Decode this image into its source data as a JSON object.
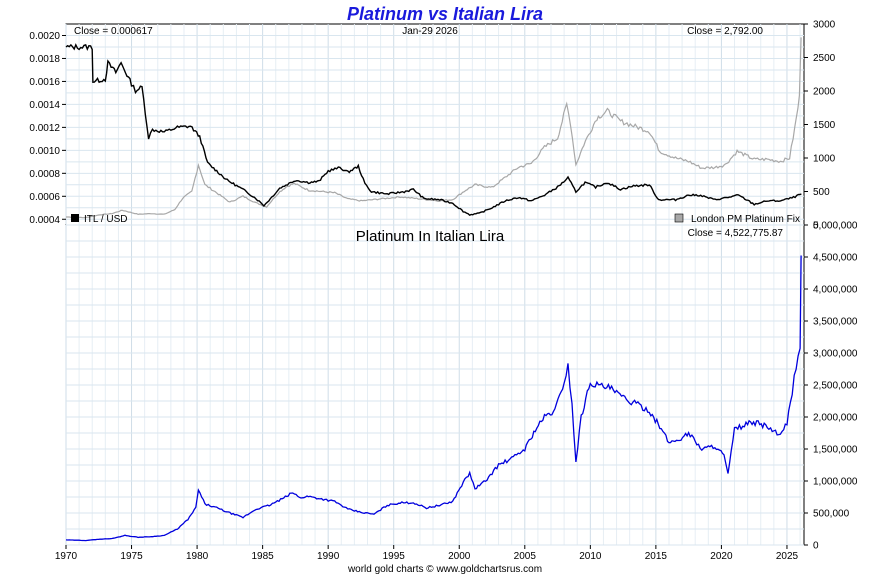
{
  "title": "Platinum vs Italian Lira",
  "footer": "world gold charts © www.goldchartsrus.com",
  "chart_data": [
    {
      "type": "line",
      "panel": "top",
      "date_label": "Jan-29  2026",
      "close_left": "Close = 0.000617",
      "close_right": "Close = 2,792.00",
      "xlim": [
        1970,
        2026.3
      ],
      "x_ticks": [
        "1970",
        "1975",
        "1980",
        "1985",
        "1990",
        "1995",
        "2000",
        "2005",
        "2010",
        "2015",
        "2020",
        "2025"
      ],
      "y_left_lim": [
        0.00035,
        0.0021
      ],
      "y_left_ticks": [
        "0.0004",
        "0.0006",
        "0.0008",
        "0.0010",
        "0.0012",
        "0.0014",
        "0.0016",
        "0.0018",
        "0.0020"
      ],
      "y_right_lim": [
        0,
        3000
      ],
      "y_right_ticks": [
        "0",
        "500",
        "1000",
        "1500",
        "2000",
        "2500",
        "3000"
      ],
      "grid": true,
      "legend_left": "ITL / USD",
      "legend_right": "London PM Platinum Fix",
      "series": [
        {
          "name": "ITL / USD",
          "axis": "left",
          "color": "#000000",
          "x": [
            1970,
            1972.0,
            1972.05,
            1973.0,
            1973.2,
            1973.8,
            1974.2,
            1975.0,
            1975.3,
            1975.8,
            1976.3,
            1976.6,
            1977.5,
            1978.5,
            1979.5,
            1980.2,
            1980.8,
            1981.5,
            1982.3,
            1983.5,
            1984.5,
            1985.1,
            1985.6,
            1986.3,
            1987.5,
            1988.5,
            1989.3,
            1990.0,
            1990.9,
            1991.5,
            1992.3,
            1992.8,
            1993.3,
            1994.5,
            1995.2,
            1995.8,
            1996.5,
            1997.3,
            1998.5,
            1999.5,
            2000.3,
            2000.8,
            2001.5,
            2002.5,
            2003.5,
            2004.5,
            2005.5,
            2006.5,
            2007.5,
            2008.3,
            2008.9,
            2009.6,
            2010.4,
            2011.3,
            2012.3,
            2013.3,
            2014.5,
            2015.2,
            2016.5,
            2017.5,
            2018.3,
            2019.5,
            2020.5,
            2021.3,
            2022.5,
            2023.5,
            2024.5,
            2025.5,
            2026.1
          ],
          "y": [
            0.0019,
            0.0019,
            0.0016,
            0.00162,
            0.00176,
            0.00168,
            0.00176,
            0.00158,
            0.00152,
            0.00155,
            0.00111,
            0.00118,
            0.00116,
            0.0012,
            0.00121,
            0.00112,
            0.00089,
            0.00082,
            0.00074,
            0.00066,
            0.00058,
            0.00052,
            0.00058,
            0.00067,
            0.00074,
            0.00072,
            0.00073,
            0.00082,
            0.00085,
            0.00081,
            0.00086,
            0.00071,
            0.00064,
            0.00062,
            0.00063,
            0.00064,
            0.00066,
            0.00058,
            0.00057,
            0.00054,
            0.00047,
            0.00044,
            0.00045,
            0.0005,
            0.00056,
            0.00059,
            0.00056,
            0.00061,
            0.00068,
            0.00076,
            0.00064,
            0.00072,
            0.00068,
            0.00072,
            0.00066,
            0.00069,
            0.0007,
            0.00057,
            0.00057,
            0.00061,
            0.00061,
            0.00057,
            0.00059,
            0.00061,
            0.00053,
            0.00056,
            0.00056,
            0.00059,
            0.00062
          ]
        },
        {
          "name": "London PM Platinum Fix",
          "axis": "right",
          "color": "#a8a8a8",
          "x": [
            1970,
            1971.5,
            1972.5,
            1973.5,
            1974.3,
            1975.5,
            1976.5,
            1977.5,
            1978.3,
            1978.9,
            1979.6,
            1980.1,
            1980.6,
            1981.5,
            1982.5,
            1983.5,
            1984.5,
            1985.3,
            1986.2,
            1986.8,
            1987.4,
            1988.5,
            1989.5,
            1990.5,
            1991.5,
            1992.5,
            1993.5,
            1994.5,
            1995.5,
            1996.5,
            1997.5,
            1998.5,
            1999.5,
            2000.5,
            2001.2,
            2002.5,
            2003.5,
            2004.5,
            2005.5,
            2006.5,
            2007.5,
            2008.2,
            2008.5,
            2008.9,
            2009.5,
            2010.5,
            2011.3,
            2012.3,
            2013.3,
            2014.5,
            2015.3,
            2016.5,
            2017.5,
            2018.5,
            2019.5,
            2020.3,
            2021.2,
            2022.5,
            2023.5,
            2024.5,
            2025.2,
            2025.6,
            2025.95,
            2026.08
          ],
          "y": [
            120,
            110,
            150,
            170,
            220,
            160,
            170,
            160,
            230,
            400,
            500,
            900,
            600,
            480,
            340,
            430,
            330,
            270,
            480,
            570,
            620,
            520,
            500,
            480,
            390,
            360,
            380,
            400,
            420,
            400,
            380,
            360,
            380,
            520,
            600,
            560,
            710,
            860,
            920,
            1160,
            1300,
            1800,
            1500,
            900,
            1200,
            1600,
            1700,
            1550,
            1480,
            1400,
            1100,
            1000,
            950,
            850,
            860,
            900,
            1100,
            980,
            980,
            950,
            1000,
            1450,
            1900,
            2800
          ]
        }
      ]
    },
    {
      "type": "line",
      "panel": "bottom",
      "title": "Platinum In Italian Lira",
      "close": "Close = 4,522,775.87",
      "xlim": [
        1970,
        2026.3
      ],
      "x_ticks": [
        "1970",
        "1975",
        "1980",
        "1985",
        "1990",
        "1995",
        "2000",
        "2005",
        "2010",
        "2015",
        "2020",
        "2025"
      ],
      "ylim": [
        0,
        5000000
      ],
      "y_ticks": [
        "0",
        "500,000",
        "1,000,000",
        "1,500,000",
        "2,000,000",
        "2,500,000",
        "3,000,000",
        "3,500,000",
        "4,000,000",
        "4,500,000",
        "5,000,000"
      ],
      "grid": true,
      "series": [
        {
          "name": "Platinum In Italian Lira",
          "color": "#0000dd",
          "x": [
            1970,
            1971.5,
            1972.5,
            1973.5,
            1974.5,
            1975.5,
            1976.5,
            1977.5,
            1978.5,
            1979.3,
            1979.9,
            1980.1,
            1980.6,
            1981.5,
            1982.5,
            1983.5,
            1984.5,
            1985.5,
            1986.5,
            1987.3,
            1987.8,
            1988.5,
            1989.5,
            1990.5,
            1991.5,
            1992.5,
            1993.5,
            1994.5,
            1995.5,
            1996.5,
            1997.5,
            1998.5,
            1999.5,
            2000.3,
            2000.8,
            2001.2,
            2002.0,
            2003.0,
            2004.0,
            2005.0,
            2005.8,
            2006.5,
            2007.3,
            2008.0,
            2008.3,
            2008.6,
            2008.9,
            2009.3,
            2010.0,
            2010.5,
            2011.5,
            2012.5,
            2013.5,
            2014.5,
            2015.3,
            2016.0,
            2016.8,
            2017.5,
            2018.5,
            2019.5,
            2020.2,
            2020.5,
            2021.0,
            2022.0,
            2022.8,
            2023.5,
            2024.5,
            2025.0,
            2025.4,
            2025.7,
            2026.0,
            2026.08
          ],
          "y": [
            80000,
            70000,
            90000,
            100000,
            150000,
            120000,
            130000,
            150000,
            250000,
            400000,
            580000,
            860000,
            640000,
            580000,
            500000,
            430000,
            560000,
            620000,
            720000,
            820000,
            740000,
            760000,
            720000,
            680000,
            560000,
            510000,
            480000,
            620000,
            660000,
            660000,
            580000,
            620000,
            680000,
            980000,
            1120000,
            880000,
            1000000,
            1250000,
            1350000,
            1500000,
            1800000,
            2000000,
            2100000,
            2550000,
            2800000,
            2200000,
            1300000,
            2000000,
            2550000,
            2500000,
            2450000,
            2300000,
            2200000,
            2100000,
            1850000,
            1600000,
            1650000,
            1750000,
            1500000,
            1550000,
            1400000,
            1100000,
            1800000,
            1900000,
            1900000,
            1850000,
            1700000,
            1900000,
            2400000,
            2800000,
            3100000,
            4522775
          ]
        }
      ]
    }
  ]
}
